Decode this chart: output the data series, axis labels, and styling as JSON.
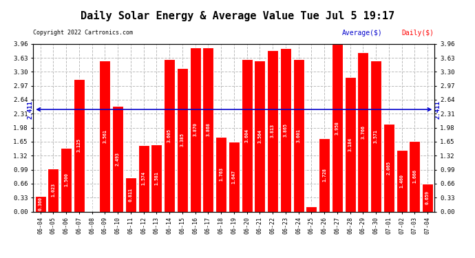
{
  "title": "Daily Solar Energy & Average Value Tue Jul 5 19:17",
  "copyright": "Copyright 2022 Cartronics.com",
  "categories": [
    "06-04",
    "06-05",
    "06-06",
    "06-07",
    "06-08",
    "06-09",
    "06-10",
    "06-11",
    "06-12",
    "06-13",
    "06-14",
    "06-15",
    "06-16",
    "06-17",
    "06-18",
    "06-19",
    "06-20",
    "06-21",
    "06-22",
    "06-23",
    "06-24",
    "06-25",
    "06-26",
    "06-27",
    "06-28",
    "06-29",
    "06-30",
    "07-01",
    "07-02",
    "07-03",
    "07-04"
  ],
  "values": [
    0.36,
    1.023,
    1.5,
    3.125,
    0.0,
    3.561,
    2.493,
    0.811,
    1.574,
    1.581,
    3.605,
    3.385,
    3.87,
    3.868,
    1.763,
    1.647,
    3.604,
    3.564,
    3.813,
    3.865,
    3.601,
    0.114,
    1.728,
    3.958,
    3.184,
    3.766,
    3.571,
    2.065,
    1.46,
    1.666,
    0.659
  ],
  "average": 2.411,
  "bar_color": "#ff0000",
  "bar_edge_color": "#ffffff",
  "average_line_color": "#0000cc",
  "average_label_color": "#0000cc",
  "daily_label_color": "#ff0000",
  "background_color": "#ffffff",
  "plot_bg_color": "#ffffff",
  "grid_color": "#bbbbbb",
  "title_fontsize": 11,
  "ylim": [
    0,
    3.96
  ],
  "yticks": [
    0.0,
    0.33,
    0.66,
    0.99,
    1.32,
    1.65,
    1.98,
    2.31,
    2.64,
    2.97,
    3.3,
    3.63,
    3.96
  ],
  "legend_avg_label": "Average($)",
  "legend_daily_label": "Daily($)"
}
